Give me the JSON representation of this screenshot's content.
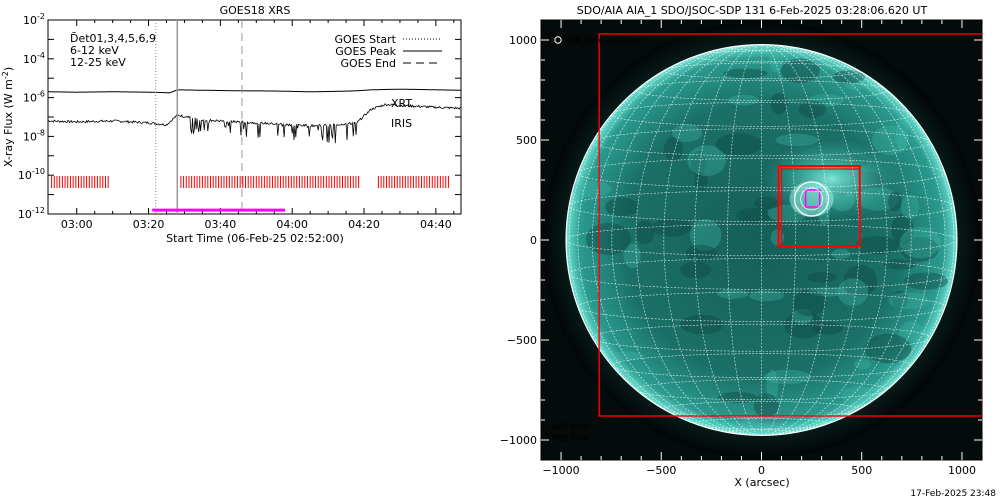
{
  "chart_data": [
    {
      "type": "line",
      "title": "GOES18 XRS",
      "xlabel": "Start Time (06-Feb-25 02:52:00)",
      "ylabel": "X-ray Flux (W m",
      "ylabel_sup": "-2",
      "ylabel_close": ")",
      "ylog": true,
      "ylim_exp": [
        -12,
        -2
      ],
      "ytick_exps": [
        -12,
        -10,
        -8,
        -6,
        -4,
        -2
      ],
      "xlim_min": [
        -8,
        107
      ],
      "xticks": [
        {
          "min": 0,
          "label": "03:00"
        },
        {
          "min": 20,
          "label": "03:20"
        },
        {
          "min": 40,
          "label": "03:40"
        },
        {
          "min": 60,
          "label": "04:00"
        },
        {
          "min": 80,
          "label": "04:20"
        },
        {
          "min": 100,
          "label": "04:40"
        }
      ],
      "upper_left_labels": [
        {
          "text": "D̄et01,3,4,5,6,9",
          "color": "#000000"
        },
        {
          "text": "6-12 keV",
          "color": "#ff00ff"
        },
        {
          "text": "12-25 keV",
          "color": "#00cc00"
        }
      ],
      "legend": [
        {
          "label": "GOES Start",
          "style": "dotted"
        },
        {
          "label": "GOES Peak",
          "style": "solid"
        },
        {
          "label": "GOES End",
          "style": "dashed"
        }
      ],
      "instrument_labels": [
        {
          "text": "XRT",
          "color": "#ff0000"
        },
        {
          "text": "IRIS",
          "color": "#cc00cc"
        }
      ],
      "events": {
        "start_min": 22,
        "peak_min": 28,
        "end_min": 46
      },
      "iris_bar": {
        "from_min": 21,
        "to_min": 58,
        "color": "#ff00ff",
        "y_exp": -11.8
      },
      "xrt_ticks": {
        "color": "#ff0000",
        "y_exp": -10.35,
        "segments": [
          [
            -7,
            9
          ],
          [
            29,
            79
          ],
          [
            84,
            104
          ]
        ]
      },
      "series": [
        {
          "name": "long",
          "color": "#000000",
          "x": [
            -8,
            0,
            10,
            20,
            26,
            28,
            35,
            45,
            55,
            65,
            72,
            78,
            82,
            86,
            90,
            95,
            100,
            107
          ],
          "y_exp": [
            -5.7,
            -5.72,
            -5.7,
            -5.72,
            -5.75,
            -5.6,
            -5.62,
            -5.65,
            -5.66,
            -5.7,
            -5.68,
            -5.65,
            -5.6,
            -5.58,
            -5.57,
            -5.58,
            -5.6,
            -5.62
          ]
        },
        {
          "name": "short",
          "color": "#000000",
          "x": [
            -8,
            0,
            10,
            20,
            25,
            28,
            35,
            45,
            55,
            65,
            72,
            78,
            82,
            86,
            90,
            95,
            100,
            107
          ],
          "y_exp": [
            -7.2,
            -7.25,
            -7.2,
            -7.3,
            -7.4,
            -6.9,
            -7.15,
            -7.25,
            -7.35,
            -7.45,
            -7.4,
            -7.3,
            -6.6,
            -6.35,
            -6.4,
            -6.45,
            -6.5,
            -6.55
          ]
        }
      ]
    },
    {
      "type": "image",
      "title": "SDO/AIA AIA_1 SDO/JSOC-SDP 131  6-Feb-2025 03:28:06.620 UT",
      "xlabel": "X (arcsec)",
      "xlim": [
        -1100,
        1100
      ],
      "ylim": [
        -1100,
        1100
      ],
      "xticks": [
        -1000,
        -500,
        0,
        500,
        1000
      ],
      "yticks": [
        -1000,
        -500,
        0,
        500,
        1000
      ],
      "solar_radius_arcsec": 975,
      "flare_location_label": "AIA flare location",
      "flare_location": [
        250,
        205
      ],
      "xrt_fov_big": [
        -810,
        -880,
        1100,
        1030
      ],
      "xrt_fov_small": [
        85,
        -30,
        490,
        370
      ],
      "iris_fov": [
        220,
        165,
        290,
        250
      ],
      "fov_labels": [
        {
          "text": "XRT FOV",
          "color": "#ff0000"
        },
        {
          "text": "IRIS FOV",
          "color": "#ff00ff"
        }
      ],
      "disk_color": "#1d7a72"
    }
  ],
  "footer_timestamp": "17-Feb-2025 23:48"
}
